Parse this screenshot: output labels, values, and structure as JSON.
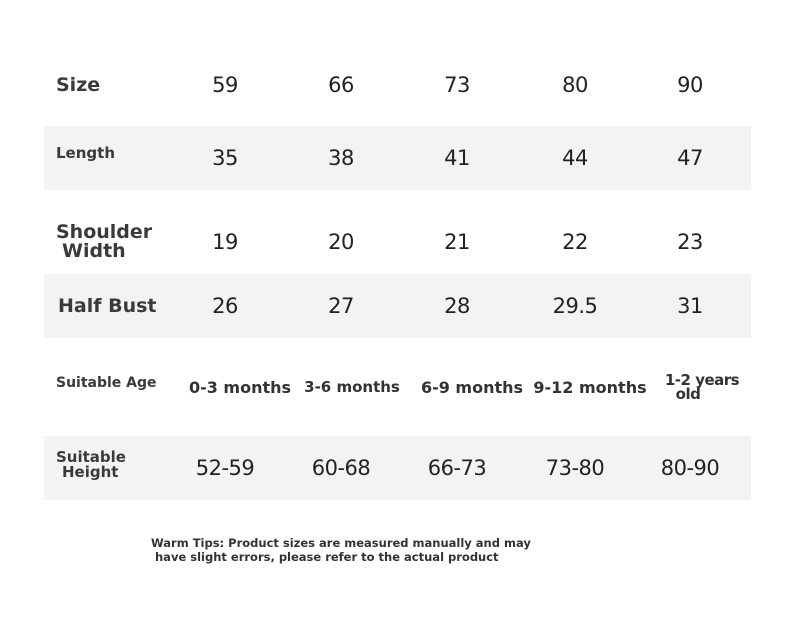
{
  "rows": [
    {
      "label": "Size",
      "values": [
        "59",
        "66",
        "73",
        "80",
        "90"
      ]
    },
    {
      "label": "Length",
      "values": [
        "35",
        "38",
        "41",
        "44",
        "47"
      ]
    },
    {
      "label_line1": "Shoulder",
      "label_line2": "Width",
      "values": [
        "19",
        "20",
        "21",
        "22",
        "23"
      ]
    },
    {
      "label": "Half Bust",
      "values": [
        "26",
        "27",
        "28",
        "29.5",
        "31"
      ]
    },
    {
      "label": "Suitable Age",
      "values": [
        "0-3 months",
        "3-6 months",
        "6-9 months",
        "9-12 months"
      ],
      "last_line1": "1-2 years",
      "last_line2": "old"
    },
    {
      "label_line1": "Suitable",
      "label_line2": "Height",
      "values": [
        "52-59",
        "60-68",
        "66-73",
        "73-80",
        "80-90"
      ]
    }
  ],
  "tips": {
    "line1": "Warm Tips: Product sizes are measured manually and may",
    "line2": "have slight errors, please refer to the actual product"
  }
}
